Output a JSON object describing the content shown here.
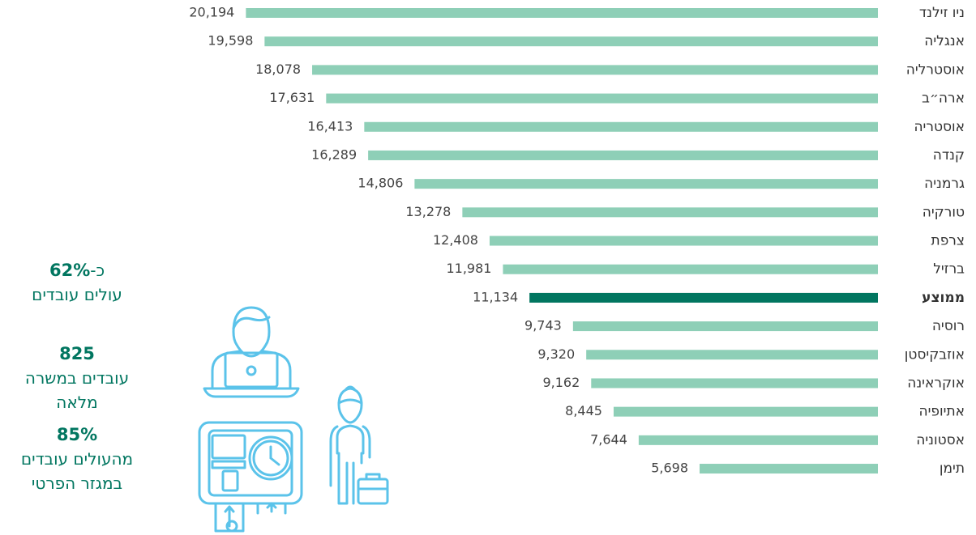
{
  "chart_data": {
    "type": "bar",
    "orientation": "horizontal",
    "categories": [
      "ניו זילנד",
      "אנגליה",
      "אוסטרליה",
      "ארה״ב",
      "אוסטריה",
      "קנדה",
      "גרמניה",
      "טורקיה",
      "צרפת",
      "ברזיל",
      "ממוצע",
      "רוסיה",
      "אוזבקיסטן",
      "אוקראינה",
      "אתיופיה",
      "אסטוניה",
      "תימן"
    ],
    "values": [
      20194,
      19598,
      18078,
      17631,
      16413,
      16289,
      14806,
      13278,
      12408,
      11981,
      11134,
      9743,
      9320,
      9162,
      8445,
      7644,
      5698
    ],
    "value_labels": [
      "20,194",
      "19,598",
      "18,078",
      "17,631",
      "16,413",
      "16,289",
      "14,806",
      "13,278",
      "12,408",
      "11,981",
      "11,134",
      "9,743",
      "9,320",
      "9,162",
      "8,445",
      "7,644",
      "5,698"
    ],
    "color": "#8ecfb7",
    "colors": [
      "#8ecfb7",
      "#8ecfb7",
      "#8ecfb7",
      "#8ecfb7",
      "#8ecfb7",
      "#8ecfb7",
      "#8ecfb7",
      "#8ecfb7",
      "#8ecfb7",
      "#8ecfb7",
      "#017660",
      "#8ecfb7",
      "#8ecfb7",
      "#8ecfb7",
      "#8ecfb7",
      "#8ecfb7",
      "#8ecfb7"
    ],
    "xlim": [
      0,
      28000
    ]
  },
  "stats": [
    {
      "prefix": "כ-",
      "value": "62%",
      "lines": [
        "עולים עובדים"
      ]
    },
    {
      "value": "825",
      "lines": [
        "עובדים במשרה",
        "מלאה"
      ]
    },
    {
      "value": "85%",
      "lines": [
        "מהעולים עובדים",
        "במגזר הפרטי"
      ]
    }
  ]
}
